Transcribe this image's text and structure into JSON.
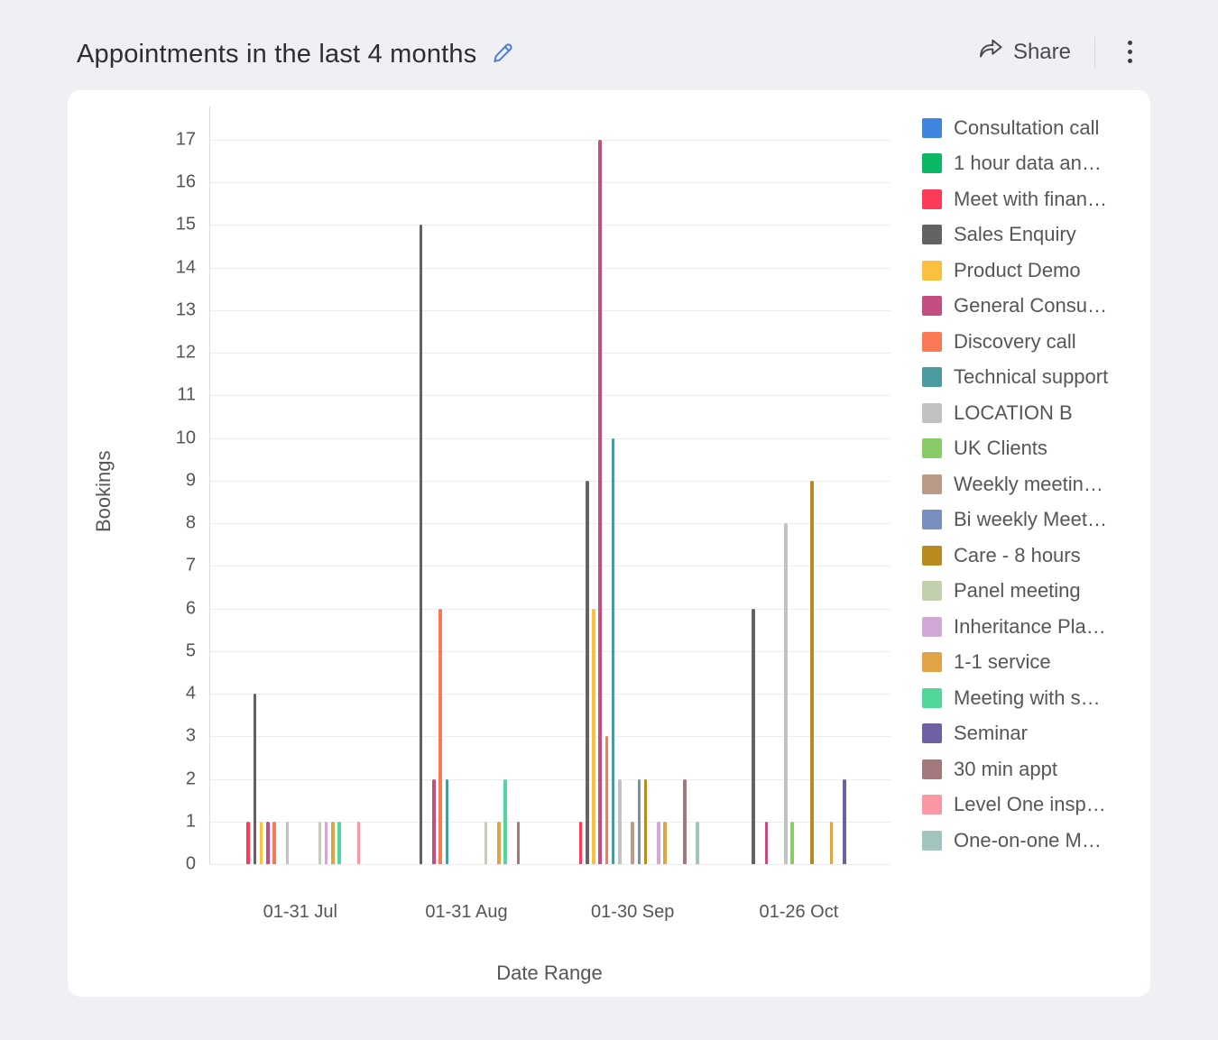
{
  "header": {
    "share_label": "Share"
  },
  "colors": {
    "accent_blue": "#4d79d9",
    "page_bg": "#eef0f3",
    "card_bg": "#ffffff",
    "axis_text": "#555555",
    "grid": "#ededee"
  },
  "chart_data": {
    "type": "bar",
    "title": "Appointments in the last 4 months",
    "xlabel": "Date Range",
    "ylabel": "Bookings",
    "ylim": [
      0,
      17
    ],
    "ytick_step": 1,
    "grid": true,
    "legend_position": "right",
    "categories": [
      "01-31 Jul",
      "01-31 Aug",
      "01-30 Sep",
      "01-26 Oct"
    ],
    "series": [
      {
        "name": "Consultation call",
        "color": "#3d85e0",
        "values": [
          0,
          0,
          0,
          0
        ]
      },
      {
        "name": "1 hour data an…",
        "color": "#0cb865",
        "values": [
          0,
          0,
          0,
          0
        ]
      },
      {
        "name": "Meet with finan…",
        "color": "#fb3b57",
        "values": [
          1,
          0,
          1,
          0
        ]
      },
      {
        "name": "Sales Enquiry",
        "color": "#636363",
        "values": [
          4,
          15,
          9,
          6
        ]
      },
      {
        "name": "Product Demo",
        "color": "#fbc03d",
        "values": [
          1,
          0,
          6,
          0
        ]
      },
      {
        "name": "General Consu…",
        "color": "#c44d82",
        "values": [
          1,
          2,
          17,
          1
        ]
      },
      {
        "name": "Discovery call",
        "color": "#fb7857",
        "values": [
          1,
          6,
          3,
          0
        ]
      },
      {
        "name": "Technical support",
        "color": "#4a9aa0",
        "values": [
          0,
          2,
          10,
          0
        ]
      },
      {
        "name": "LOCATION B",
        "color": "#c2c2c2",
        "values": [
          1,
          0,
          2,
          8
        ]
      },
      {
        "name": "UK Clients",
        "color": "#87cc66",
        "values": [
          0,
          0,
          0,
          1
        ]
      },
      {
        "name": "Weekly meetin…",
        "color": "#bb9a87",
        "values": [
          0,
          0,
          1,
          0
        ]
      },
      {
        "name": "Bi weekly Meet…",
        "color": "#7a8fbd",
        "values": [
          0,
          0,
          2,
          0
        ]
      },
      {
        "name": "Care - 8 hours",
        "color": "#b88a1f",
        "values": [
          0,
          0,
          2,
          9
        ]
      },
      {
        "name": "Panel meeting",
        "color": "#c3d0ac",
        "values": [
          1,
          1,
          0,
          0
        ]
      },
      {
        "name": "Inheritance Pla…",
        "color": "#cfa8d6",
        "values": [
          1,
          0,
          1,
          0
        ]
      },
      {
        "name": "1-1 service",
        "color": "#e0a345",
        "values": [
          1,
          1,
          1,
          1
        ]
      },
      {
        "name": "Meeting with s…",
        "color": "#52d69a",
        "values": [
          1,
          2,
          0,
          0
        ]
      },
      {
        "name": "Seminar",
        "color": "#6f5fa3",
        "values": [
          0,
          0,
          0,
          2
        ]
      },
      {
        "name": "30 min appt",
        "color": "#a3787c",
        "values": [
          0,
          1,
          2,
          0
        ]
      },
      {
        "name": "Level One insp…",
        "color": "#fb96a5",
        "values": [
          1,
          0,
          0,
          0
        ]
      },
      {
        "name": "One-on-one M…",
        "color": "#a2c4bf",
        "values": [
          0,
          0,
          1,
          0
        ]
      }
    ]
  }
}
